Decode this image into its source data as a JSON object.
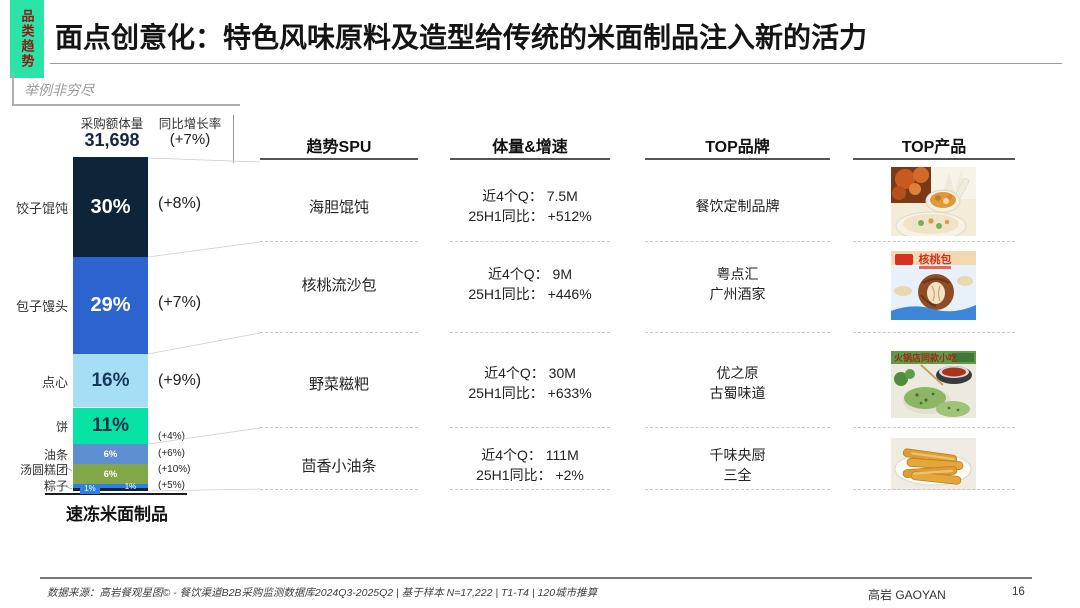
{
  "sidebar_tab": {
    "label": "品类趋势"
  },
  "header": {
    "title": "面点创意化：特色风味原料及造型给传统的米面制品注入新的活力",
    "note": "举例非穷尽"
  },
  "chart_data": {
    "type": "bar",
    "title": "速冻米面制品",
    "volume_header": "采购额体量",
    "volume_value": "31,698",
    "growth_header": "同比增长率",
    "growth_value": "(+7%)",
    "axis_label": "速冻米面制品",
    "ylim": [
      0,
      100
    ],
    "segments": [
      {
        "label": "饺子馄饨",
        "pct": "30%",
        "value": 30,
        "growth": "(+8%)",
        "color": "#0e2438",
        "text_color": "#ffffff"
      },
      {
        "label": "包子馒头",
        "pct": "29%",
        "value": 29,
        "growth": "(+7%)",
        "color": "#2c63cf",
        "text_color": "#ffffff"
      },
      {
        "label": "点心",
        "pct": "16%",
        "value": 16,
        "growth": "(+9%)",
        "color": "#a6dff5",
        "text_color": "#17395f"
      },
      {
        "label": "饼",
        "pct": "11%",
        "value": 11,
        "growth": "(+4%)",
        "color": "#06e3a4",
        "text_color": "#0a2e4f"
      },
      {
        "label": "油条",
        "pct": "6%",
        "value": 6,
        "growth": "(+6%)",
        "color": "#5d8ecf",
        "text_color": "#ffffff"
      },
      {
        "label": "汤圆糕团",
        "pct": "6%",
        "value": 6,
        "growth": "(+10%)",
        "color": "#81a748",
        "text_color": "#ffffff"
      },
      {
        "label": "粽子",
        "pct": "1%",
        "value": 1,
        "growth": "(+5%)",
        "color": "#2f7ee5",
        "text_color": "#ffffff"
      },
      {
        "label": "",
        "pct": "1%",
        "value": 1,
        "growth": "",
        "color": "#0e2438",
        "text_color": "#ffffff"
      }
    ]
  },
  "table": {
    "columns": [
      "趋势SPU",
      "体量&增速",
      "TOP品牌",
      "TOP产品"
    ],
    "rows": [
      {
        "spu": "海胆馄饨",
        "volume": "近4个Q： 7.5M",
        "growth": "25H1同比： +512%",
        "brands": [
          "餐饮定制品牌"
        ],
        "image": "sea-urchin-wonton-soup-photo"
      },
      {
        "spu": "核桃流沙包",
        "volume": "近4个Q： 9M",
        "growth": "25H1同比： +446%",
        "brands": [
          "粤点汇",
          "广州酒家"
        ],
        "image": "walnut-lava-bun-package-photo",
        "pack_text": "核桃包"
      },
      {
        "spu": "野菜糍粑",
        "volume": "近4个Q： 30M",
        "growth": "25H1同比： +633%",
        "brands": [
          "优之原",
          "古蜀味道"
        ],
        "image": "wild-veggie-ciba-photo",
        "banner_text": "火锅店同款小吃"
      },
      {
        "spu": "茴香小油条",
        "volume": "近4个Q： 111M",
        "growth": "25H1同比： +2%",
        "brands": [
          "千味央厨",
          "三全"
        ],
        "image": "fennel-dough-sticks-photo"
      }
    ]
  },
  "footer": {
    "source_note": "数据来源：高岩餐观星图© - 餐饮渠道B2B采购监测数据库2024Q3-2025Q2 | 基于样本 N=17,222 | T1-T4 | 120城市推算",
    "brand": "高岩 GAOYAN",
    "page_number": "16"
  }
}
